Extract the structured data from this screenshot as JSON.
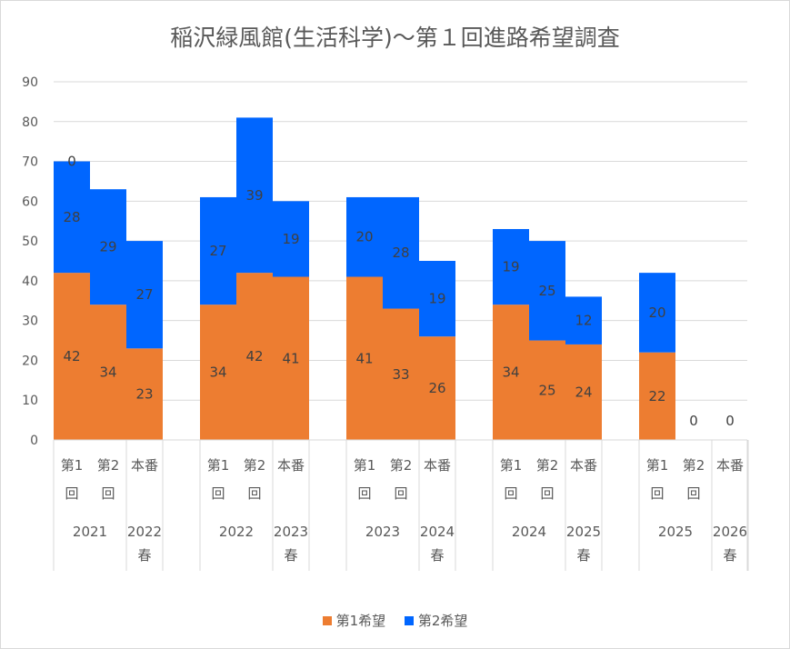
{
  "chart_data": {
    "type": "bar",
    "stacked": true,
    "title": "稲沢緑風館(生活科学)〜第１回進路希望調査",
    "ylim": [
      0,
      90
    ],
    "yticks": [
      0,
      10,
      20,
      30,
      40,
      50,
      60,
      70,
      80,
      90
    ],
    "grid": true,
    "legend": "bottom",
    "groups": [
      {
        "year": "2021",
        "spring": "2022春"
      },
      {
        "year": "2022",
        "spring": "2023春"
      },
      {
        "year": "2023",
        "spring": "2024春"
      },
      {
        "year": "2024",
        "spring": "2025春"
      },
      {
        "year": "2025",
        "spring": "2026春"
      }
    ],
    "rounds": [
      "第1回",
      "第2回",
      "本番"
    ],
    "series": [
      {
        "name": "第1希望",
        "color": "#ED7D31",
        "values": [
          [
            42,
            34,
            23
          ],
          [
            34,
            42,
            41
          ],
          [
            41,
            33,
            26
          ],
          [
            34,
            25,
            24
          ],
          [
            22,
            0,
            0
          ]
        ]
      },
      {
        "name": "第2希望",
        "color": "#0066FF",
        "values": [
          [
            28,
            29,
            27
          ],
          [
            27,
            39,
            19
          ],
          [
            20,
            28,
            19
          ],
          [
            19,
            25,
            12
          ],
          [
            20,
            0,
            0
          ]
        ]
      }
    ],
    "extra_labels": [
      {
        "group": 0,
        "round": 0,
        "text": "0"
      }
    ]
  }
}
